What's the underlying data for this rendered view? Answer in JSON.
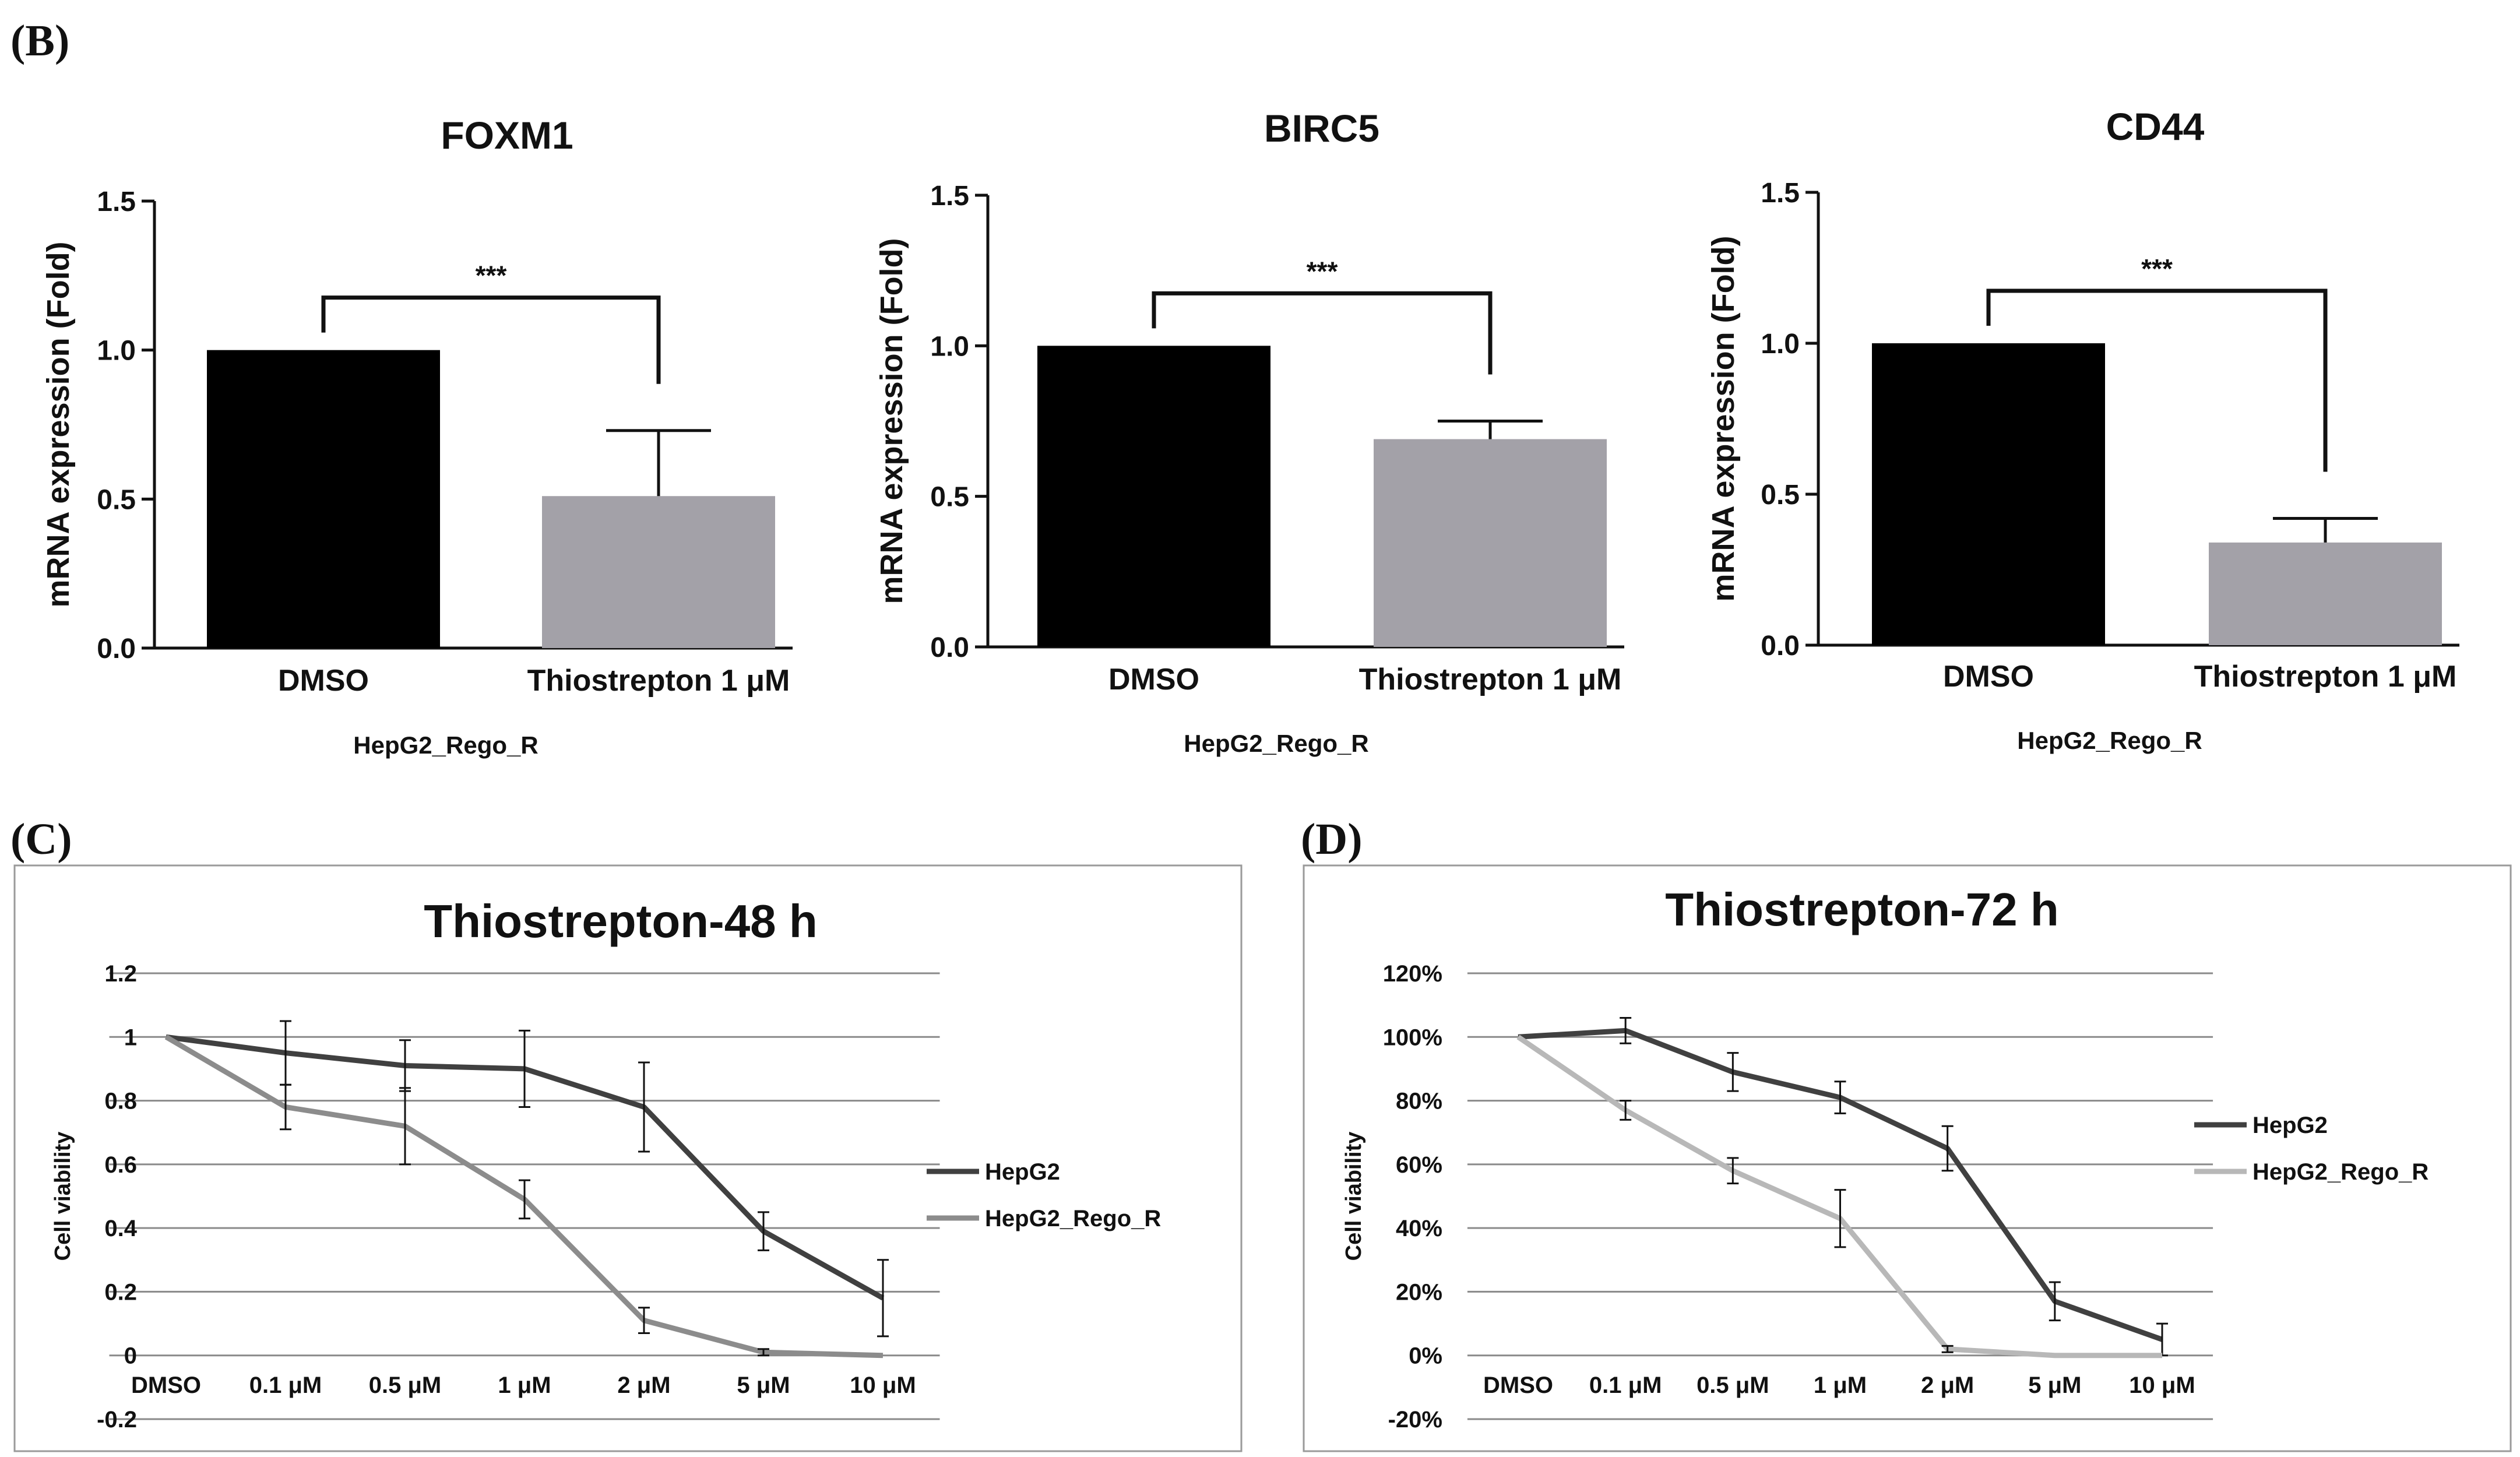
{
  "figure": {
    "panel_b_label": "(B)",
    "panel_c_label": "(C)",
    "panel_d_label": "(D)"
  },
  "colors": {
    "dmso_bar": "#000000",
    "treated_bar": "#a3a1a8",
    "hepg2_line": "#404040",
    "rego_line_c": "#8c8c8c",
    "rego_line_d": "#b8b8b8",
    "grid": "#8a8a8a",
    "axis": "#111111"
  },
  "chart_data": [
    {
      "type": "bar",
      "title": "FOXM1",
      "ylabel": "mRNA expression (Fold)",
      "xlabel": "HepG2_Rego_R",
      "categories": [
        "DMSO",
        "Thiostrepton 1 μM"
      ],
      "values": [
        1.0,
        0.51
      ],
      "errors": [
        0,
        0.22
      ],
      "ylim": [
        0,
        1.5
      ],
      "yticks": [
        "0.0",
        "0.5",
        "1.0",
        "1.5"
      ],
      "significance": "***"
    },
    {
      "type": "bar",
      "title": "BIRC5",
      "ylabel": "mRNA expression (Fold)",
      "xlabel": "HepG2_Rego_R",
      "categories": [
        "DMSO",
        "Thiostrepton 1 μM"
      ],
      "values": [
        1.0,
        0.69
      ],
      "errors": [
        0,
        0.06
      ],
      "ylim": [
        0,
        1.5
      ],
      "yticks": [
        "0.0",
        "0.5",
        "1.0",
        "1.5"
      ],
      "significance": "***"
    },
    {
      "type": "bar",
      "title": "CD44",
      "ylabel": "mRNA expression (Fold)",
      "xlabel": "HepG2_Rego_R",
      "categories": [
        "DMSO",
        "Thiostrepton 1 μM"
      ],
      "values": [
        1.0,
        0.34
      ],
      "errors": [
        0,
        0.08
      ],
      "ylim": [
        0,
        1.5
      ],
      "yticks": [
        "0.0",
        "0.5",
        "1.0",
        "1.5"
      ],
      "significance": "***"
    },
    {
      "type": "line",
      "title": "Thiostrepton-48 h",
      "ylabel": "Cell viability",
      "categories": [
        "DMSO",
        "0.1 μM",
        "0.5 μM",
        "1 μM",
        "2 μM",
        "5 μM",
        "10 μM"
      ],
      "ylim": [
        -0.2,
        1.2
      ],
      "yticks": [
        "-0.2",
        "0",
        "0.2",
        "0.4",
        "0.6",
        "0.8",
        "1",
        "1.2"
      ],
      "series": [
        {
          "name": "HepG2",
          "values": [
            1.0,
            0.95,
            0.91,
            0.9,
            0.78,
            0.39,
            0.18
          ],
          "errors": [
            0,
            0.1,
            0.08,
            0.12,
            0.14,
            0.06,
            0.12
          ]
        },
        {
          "name": "HepG2_Rego_R",
          "values": [
            1.0,
            0.78,
            0.72,
            0.49,
            0.11,
            0.01,
            0.0
          ],
          "errors": [
            0,
            0.07,
            0.12,
            0.06,
            0.04,
            0.01,
            0.0
          ]
        }
      ]
    },
    {
      "type": "line",
      "title": "Thiostrepton-72 h",
      "ylabel": "Cell viability",
      "categories": [
        "DMSO",
        "0.1 μM",
        "0.5 μM",
        "1 μM",
        "2 μM",
        "5 μM",
        "10 μM"
      ],
      "ylim": [
        -20,
        120
      ],
      "yticks": [
        "-20%",
        "0%",
        "20%",
        "40%",
        "60%",
        "80%",
        "100%",
        "120%"
      ],
      "series": [
        {
          "name": "HepG2",
          "values": [
            100,
            102,
            89,
            81,
            65,
            17,
            5
          ],
          "errors": [
            0,
            4,
            6,
            5,
            7,
            6,
            5
          ]
        },
        {
          "name": "HepG2_Rego_R",
          "values": [
            100,
            77,
            58,
            43,
            2,
            0,
            0
          ],
          "errors": [
            0,
            3,
            4,
            9,
            1,
            0,
            0
          ]
        }
      ]
    }
  ]
}
